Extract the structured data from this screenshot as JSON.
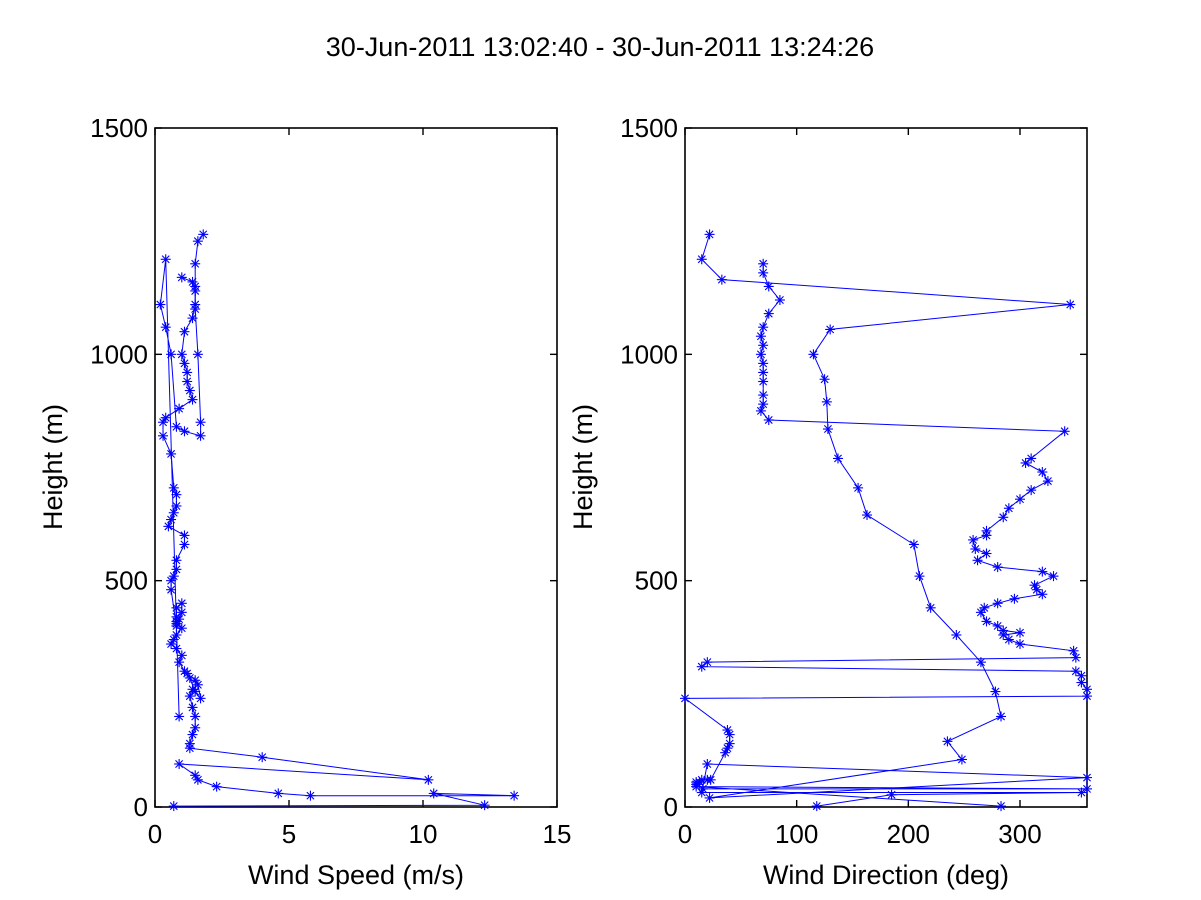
{
  "figure": {
    "title": "30-Jun-2011 13:02:40 - 30-Jun-2011 13:24:26",
    "background": "#ffffff",
    "line_color": "#0000ff"
  },
  "chart_data": [
    {
      "type": "line",
      "marker": "asterisk",
      "xlabel": "Wind Speed (m/s)",
      "ylabel": "Height (m)",
      "xlim": [
        0,
        15
      ],
      "ylim": [
        0,
        1500
      ],
      "xticks": [
        "0",
        "5",
        "10",
        "15"
      ],
      "yticks": [
        "0",
        "500",
        "1000",
        "1500"
      ],
      "grid": false,
      "series": [
        {
          "color": "#0000ff",
          "x": [
            0.7,
            12.3,
            10.4,
            13.4,
            5.8,
            4.6,
            2.3,
            1.6,
            1.5,
            0.9,
            10.2,
            4.0,
            1.3,
            1.3,
            1.4,
            1.5,
            1.5,
            1.4,
            1.3,
            1.4,
            1.7,
            1.6,
            1.5,
            1.5,
            1.3,
            1.2,
            1.1,
            0.9,
            1.0,
            0.8,
            0.6,
            0.7,
            0.8,
            1.0,
            0.8,
            0.8,
            0.8,
            0.8,
            1.0,
            1.0,
            0.9,
            0.8,
            0.6,
            0.6,
            0.7,
            0.8,
            0.8,
            1.1,
            1.1,
            0.5,
            0.6,
            0.7,
            0.8,
            0.8,
            0.7,
            0.6,
            0.3,
            0.3,
            0.4,
            0.9,
            1.4,
            1.3,
            1.2,
            1.2,
            1.1,
            1.0,
            1.1,
            1.4,
            1.5,
            1.5,
            1.4,
            1.0
          ],
          "y": [
            2,
            4,
            30,
            25,
            25,
            30,
            45,
            60,
            70,
            95,
            60,
            110,
            130,
            140,
            160,
            175,
            200,
            220,
            245,
            260,
            240,
            270,
            280,
            255,
            285,
            295,
            300,
            320,
            335,
            350,
            360,
            370,
            380,
            395,
            405,
            410,
            420,
            440,
            450,
            430,
            415,
            400,
            480,
            500,
            510,
            525,
            545,
            580,
            600,
            620,
            635,
            650,
            665,
            690,
            705,
            780,
            820,
            850,
            860,
            880,
            900,
            920,
            940,
            960,
            980,
            1000,
            1050,
            1080,
            1110,
            1140,
            1160,
            1170
          ]
        },
        {
          "color": "#0000ff",
          "x": [
            0.9,
            0.4,
            0.2,
            0.4,
            0.6,
            0.8,
            1.1,
            1.7,
            1.7,
            1.6,
            1.5,
            1.5,
            1.5,
            1.6,
            1.8
          ],
          "y": [
            200,
            1210,
            1110,
            1060,
            1000,
            840,
            830,
            820,
            850,
            1000,
            1100,
            1150,
            1200,
            1250,
            1265
          ]
        }
      ]
    },
    {
      "type": "line",
      "marker": "asterisk",
      "xlabel": "Wind Direction (deg)",
      "ylabel": "Height (m)",
      "xlim": [
        0,
        360
      ],
      "ylim": [
        0,
        1500
      ],
      "xticks": [
        "0",
        "100",
        "200",
        "300"
      ],
      "yticks": [
        "0",
        "500",
        "1000",
        "1500"
      ],
      "grid": false,
      "series": [
        {
          "color": "#0000ff",
          "x": [
            118,
            185,
            355,
            15,
            20,
            360,
            22,
            248,
            235,
            283,
            278,
            265,
            243,
            220,
            210,
            205,
            163,
            155,
            137,
            128,
            127,
            125,
            115,
            130,
            345,
            33,
            15,
            22
          ],
          "y": [
            2,
            27,
            32,
            32,
            95,
            65,
            20,
            105,
            145,
            200,
            255,
            320,
            380,
            440,
            510,
            580,
            645,
            705,
            770,
            835,
            895,
            945,
            1000,
            1055,
            1110,
            1165,
            1210,
            1265
          ]
        },
        {
          "color": "#0000ff",
          "x": [
            283,
            10,
            360,
            16,
            10,
            10,
            13,
            15,
            20,
            23,
            36,
            38,
            40,
            40,
            38,
            0,
            360,
            360,
            355,
            355,
            350,
            15,
            20,
            350,
            348,
            300,
            290,
            285,
            300,
            285,
            280,
            270,
            265,
            268,
            280,
            295,
            320,
            315,
            313,
            330,
            320,
            280,
            262,
            270,
            260,
            258,
            270,
            270,
            285,
            290,
            300,
            310,
            325,
            320,
            305,
            310,
            340,
            75,
            68,
            70,
            70,
            70,
            70,
            70,
            68,
            70,
            68,
            70,
            75,
            85,
            75,
            70,
            70
          ],
          "y": [
            2,
            45,
            40,
            40,
            50,
            55,
            55,
            60,
            60,
            60,
            120,
            130,
            140,
            160,
            170,
            240,
            245,
            260,
            275,
            290,
            300,
            310,
            320,
            330,
            345,
            360,
            370,
            380,
            385,
            390,
            400,
            410,
            430,
            440,
            450,
            460,
            470,
            480,
            490,
            510,
            520,
            530,
            545,
            560,
            570,
            590,
            600,
            610,
            640,
            660,
            680,
            700,
            720,
            740,
            760,
            770,
            830,
            855,
            875,
            890,
            910,
            940,
            960,
            980,
            1000,
            1020,
            1040,
            1060,
            1090,
            1120,
            1150,
            1180,
            1200
          ]
        }
      ]
    }
  ]
}
